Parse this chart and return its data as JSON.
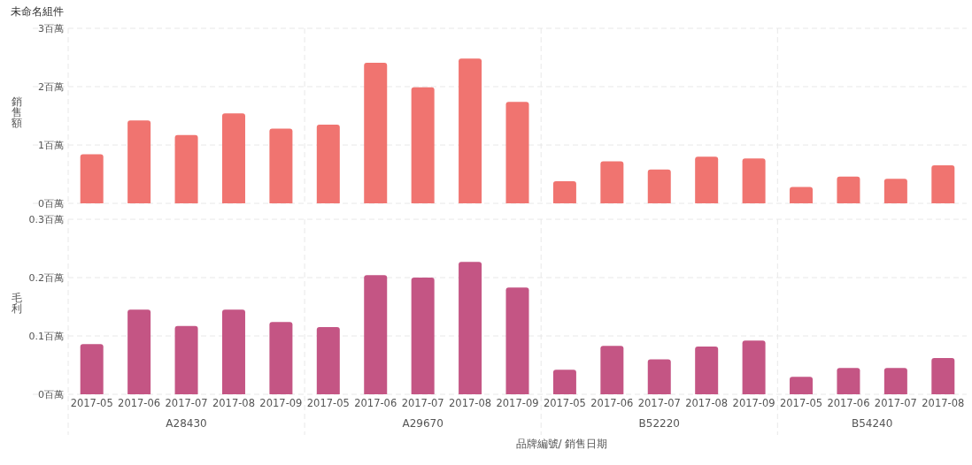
{
  "chart_data": [
    {
      "type": "bar",
      "title": "未命名組件",
      "ylabel": "銷售額",
      "tick_labels": "y",
      "grid": "y",
      "categories": [
        "2017-05",
        "2017-06",
        "2017-07",
        "2017-08",
        "2017-09",
        "2017-05",
        "2017-06",
        "2017-07",
        "2017-08",
        "2017-09",
        "2017-05",
        "2017-06",
        "2017-07",
        "2017-08",
        "2017-09",
        "2017-05",
        "2017-06",
        "2017-07",
        "2017-08"
      ],
      "series": [
        {
          "color": "#f07470",
          "values": [
            0.84,
            1.42,
            1.17,
            1.54,
            1.28,
            1.35,
            2.41,
            1.99,
            2.48,
            1.74,
            0.38,
            0.72,
            0.58,
            0.8,
            0.77,
            0.28,
            0.46,
            0.42,
            0.65
          ]
        }
      ],
      "ylim": [
        0,
        3
      ],
      "yticks": [
        {
          "value": 0,
          "label": "0百萬"
        },
        {
          "value": 1,
          "label": "1百萬"
        },
        {
          "value": 2,
          "label": "2百萬"
        },
        {
          "value": 3,
          "label": "3百萬"
        }
      ]
    },
    {
      "type": "bar",
      "ylabel": "毛利",
      "xlabel": "品牌編號/ 銷售日期",
      "grid": "y",
      "categories": [
        "2017-05",
        "2017-06",
        "2017-07",
        "2017-08",
        "2017-09",
        "2017-05",
        "2017-06",
        "2017-07",
        "2017-08",
        "2017-09",
        "2017-05",
        "2017-06",
        "2017-07",
        "2017-08",
        "2017-09",
        "2017-05",
        "2017-06",
        "2017-07",
        "2017-08"
      ],
      "series": [
        {
          "color": "#c45584",
          "values": [
            0.086,
            0.145,
            0.117,
            0.145,
            0.124,
            0.115,
            0.204,
            0.2,
            0.227,
            0.183,
            0.042,
            0.083,
            0.06,
            0.082,
            0.092,
            0.03,
            0.045,
            0.045,
            0.062
          ]
        }
      ],
      "ylim": [
        0,
        0.3
      ],
      "yticks": [
        {
          "value": 0,
          "label": "0百萬"
        },
        {
          "value": 0.1,
          "label": "0.1百萬"
        },
        {
          "value": 0.2,
          "label": "0.2百萬"
        },
        {
          "value": 0.3,
          "label": "0.3百萬"
        }
      ],
      "annotations": [
        "A28430",
        "A29670",
        "B52220",
        "B54240"
      ]
    }
  ]
}
